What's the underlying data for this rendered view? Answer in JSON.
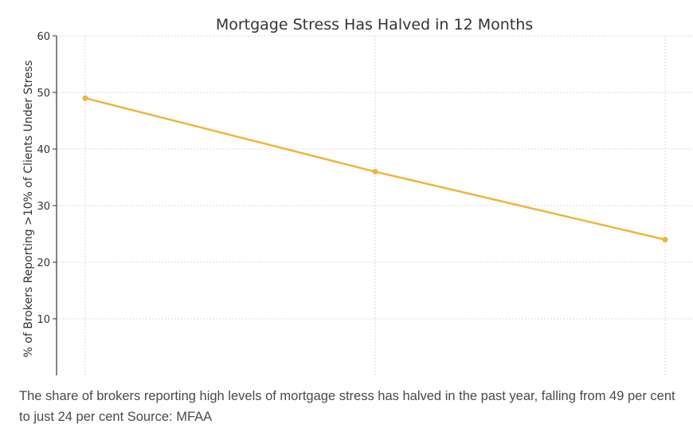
{
  "caption": "The share of brokers reporting high levels of mortgage stress has halved in the past year, falling from 49 per cent to just 24 per cent Source: MFAA",
  "chart_data": {
    "type": "line",
    "title": "Mortgage Stress Has Halved in 12 Months",
    "xlabel": "",
    "ylabel": "% of Brokers Reporting >10% of Clients Under Stress",
    "x": [
      0,
      1,
      2
    ],
    "series": [
      {
        "values": [
          49,
          36,
          24
        ]
      }
    ],
    "ylim": [
      0,
      60
    ],
    "yticks": [
      10,
      20,
      30,
      40,
      50,
      60
    ],
    "grid": true,
    "legend": "none",
    "line_color": "#f0b43a",
    "grid_color": "#d9d9d9",
    "axis_color": "#333333"
  }
}
